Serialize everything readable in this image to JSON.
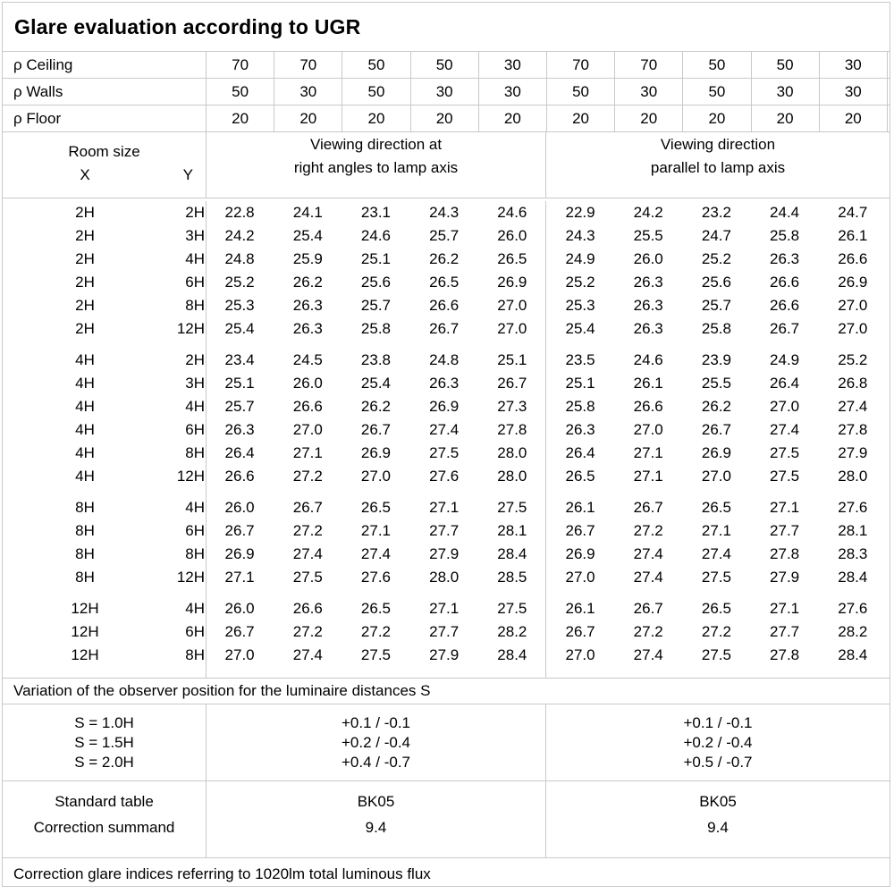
{
  "title": "Glare evaluation according to UGR",
  "grid_color": "#c9c9c9",
  "reflectance_rows": [
    {
      "label": "ρ Ceiling",
      "values": [
        "70",
        "70",
        "50",
        "50",
        "30",
        "70",
        "70",
        "50",
        "50",
        "30"
      ]
    },
    {
      "label": "ρ Walls",
      "values": [
        "50",
        "30",
        "50",
        "30",
        "30",
        "50",
        "30",
        "50",
        "30",
        "30"
      ]
    },
    {
      "label": "ρ Floor",
      "values": [
        "20",
        "20",
        "20",
        "20",
        "20",
        "20",
        "20",
        "20",
        "20",
        "20"
      ]
    }
  ],
  "header": {
    "room_size_label": "Room size",
    "x_label": "X",
    "y_label": "Y",
    "right_angle_label": "Viewing direction at\nright angles to lamp axis",
    "parallel_label": "Viewing direction\nparallel to lamp axis"
  },
  "data_blocks": [
    {
      "rows": [
        {
          "x": "2H",
          "y": "2H",
          "values": [
            "22.8",
            "24.1",
            "23.1",
            "24.3",
            "24.6",
            "22.9",
            "24.2",
            "23.2",
            "24.4",
            "24.7"
          ]
        },
        {
          "x": "2H",
          "y": "3H",
          "values": [
            "24.2",
            "25.4",
            "24.6",
            "25.7",
            "26.0",
            "24.3",
            "25.5",
            "24.7",
            "25.8",
            "26.1"
          ]
        },
        {
          "x": "2H",
          "y": "4H",
          "values": [
            "24.8",
            "25.9",
            "25.1",
            "26.2",
            "26.5",
            "24.9",
            "26.0",
            "25.2",
            "26.3",
            "26.6"
          ]
        },
        {
          "x": "2H",
          "y": "6H",
          "values": [
            "25.2",
            "26.2",
            "25.6",
            "26.5",
            "26.9",
            "25.2",
            "26.3",
            "25.6",
            "26.6",
            "26.9"
          ]
        },
        {
          "x": "2H",
          "y": "8H",
          "values": [
            "25.3",
            "26.3",
            "25.7",
            "26.6",
            "27.0",
            "25.3",
            "26.3",
            "25.7",
            "26.6",
            "27.0"
          ]
        },
        {
          "x": "2H",
          "y": "12H",
          "values": [
            "25.4",
            "26.3",
            "25.8",
            "26.7",
            "27.0",
            "25.4",
            "26.3",
            "25.8",
            "26.7",
            "27.0"
          ]
        }
      ]
    },
    {
      "rows": [
        {
          "x": "4H",
          "y": "2H",
          "values": [
            "23.4",
            "24.5",
            "23.8",
            "24.8",
            "25.1",
            "23.5",
            "24.6",
            "23.9",
            "24.9",
            "25.2"
          ]
        },
        {
          "x": "4H",
          "y": "3H",
          "values": [
            "25.1",
            "26.0",
            "25.4",
            "26.3",
            "26.7",
            "25.1",
            "26.1",
            "25.5",
            "26.4",
            "26.8"
          ]
        },
        {
          "x": "4H",
          "y": "4H",
          "values": [
            "25.7",
            "26.6",
            "26.2",
            "26.9",
            "27.3",
            "25.8",
            "26.6",
            "26.2",
            "27.0",
            "27.4"
          ]
        },
        {
          "x": "4H",
          "y": "6H",
          "values": [
            "26.3",
            "27.0",
            "26.7",
            "27.4",
            "27.8",
            "26.3",
            "27.0",
            "26.7",
            "27.4",
            "27.8"
          ]
        },
        {
          "x": "4H",
          "y": "8H",
          "values": [
            "26.4",
            "27.1",
            "26.9",
            "27.5",
            "28.0",
            "26.4",
            "27.1",
            "26.9",
            "27.5",
            "27.9"
          ]
        },
        {
          "x": "4H",
          "y": "12H",
          "values": [
            "26.6",
            "27.2",
            "27.0",
            "27.6",
            "28.0",
            "26.5",
            "27.1",
            "27.0",
            "27.5",
            "28.0"
          ]
        }
      ]
    },
    {
      "rows": [
        {
          "x": "8H",
          "y": "4H",
          "values": [
            "26.0",
            "26.7",
            "26.5",
            "27.1",
            "27.5",
            "26.1",
            "26.7",
            "26.5",
            "27.1",
            "27.6"
          ]
        },
        {
          "x": "8H",
          "y": "6H",
          "values": [
            "26.7",
            "27.2",
            "27.1",
            "27.7",
            "28.1",
            "26.7",
            "27.2",
            "27.1",
            "27.7",
            "28.1"
          ]
        },
        {
          "x": "8H",
          "y": "8H",
          "values": [
            "26.9",
            "27.4",
            "27.4",
            "27.9",
            "28.4",
            "26.9",
            "27.4",
            "27.4",
            "27.8",
            "28.3"
          ]
        },
        {
          "x": "8H",
          "y": "12H",
          "values": [
            "27.1",
            "27.5",
            "27.6",
            "28.0",
            "28.5",
            "27.0",
            "27.4",
            "27.5",
            "27.9",
            "28.4"
          ]
        }
      ]
    },
    {
      "rows": [
        {
          "x": "12H",
          "y": "4H",
          "values": [
            "26.0",
            "26.6",
            "26.5",
            "27.1",
            "27.5",
            "26.1",
            "26.7",
            "26.5",
            "27.1",
            "27.6"
          ]
        },
        {
          "x": "12H",
          "y": "6H",
          "values": [
            "26.7",
            "27.2",
            "27.2",
            "27.7",
            "28.2",
            "26.7",
            "27.2",
            "27.2",
            "27.7",
            "28.2"
          ]
        },
        {
          "x": "12H",
          "y": "8H",
          "values": [
            "27.0",
            "27.4",
            "27.5",
            "27.9",
            "28.4",
            "27.0",
            "27.4",
            "27.5",
            "27.8",
            "28.4"
          ]
        }
      ]
    }
  ],
  "variation_note": "Variation of the observer position for the luminaire distances S",
  "s_variation": {
    "labels": [
      "S = 1.0H",
      "S = 1.5H",
      "S = 2.0H"
    ],
    "right_angle": [
      "+0.1 / -0.1",
      "+0.2 / -0.4",
      "+0.4 / -0.7"
    ],
    "parallel": [
      "+0.1 / -0.1",
      "+0.2 / -0.4",
      "+0.5 / -0.7"
    ]
  },
  "standard": {
    "table_label": "Standard table",
    "summand_label": "Correction summand",
    "right_angle": [
      "BK05",
      "9.4"
    ],
    "parallel": [
      "BK05",
      "9.4"
    ]
  },
  "footer_note": "Correction glare indices referring to 1020lm total luminous flux"
}
